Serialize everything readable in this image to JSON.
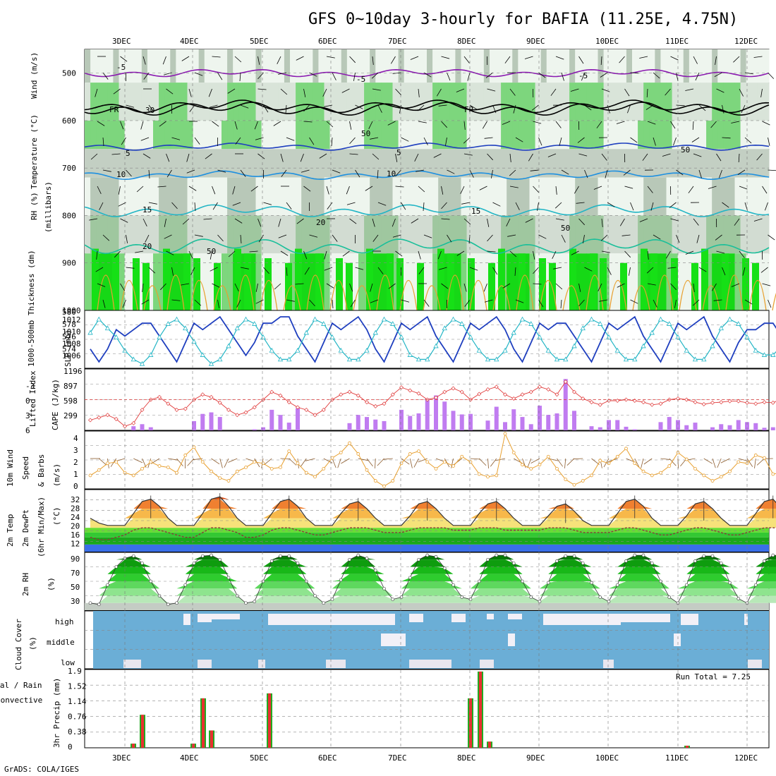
{
  "title": "GFS 0~10day 3-hourly for BAFIA (11.25E, 4.75N)",
  "credit": "GrADS: COLA/IGES",
  "dates": [
    "3DEC",
    "4DEC",
    "5DEC",
    "6DEC",
    "7DEC",
    "8DEC",
    "9DEC",
    "10DEC",
    "11DEC",
    "12DEC"
  ],
  "colors": {
    "sst_line": "#1f3fbf",
    "thickness_line": "#22b5c5",
    "lifted_index": "#e03a3a",
    "cape_bar": "#c07cf0",
    "wind_speed": "#e8a030",
    "rh_green": "#16c116",
    "cloud_blue": "#6baed6",
    "precip_total": "#22aa22",
    "precip_conv": "#e83030"
  },
  "panels": {
    "upper": {
      "ylabel_rh": "RH (%)",
      "ylabel_temp": "Temperature (°C)",
      "ylabel_wind": "Wind (m/s)",
      "ylabel_units": "(millibars)",
      "yticks": [
        "500",
        "600",
        "700",
        "800",
        "900",
        "1000"
      ],
      "contour_labels": [
        "-5",
        "-5",
        "-5",
        "FR",
        "FR",
        "5",
        "5",
        "10",
        "10",
        "15",
        "15",
        "20",
        "20",
        "30",
        "50",
        "50",
        "50",
        "50"
      ]
    },
    "slp": {
      "ylabel_left": "1000-500mb Thickness (dm)",
      "ylabel_right": "SLP (mb)",
      "yticks_left": [
        "580",
        "578",
        "576",
        "574"
      ],
      "yticks_right": [
        "1012",
        "1010",
        "1008",
        "1006"
      ]
    },
    "cape": {
      "ylabel_left": "Lifted Index",
      "ylabel_right": "CAPE (J/kg)",
      "yticks_left": [
        "-3",
        "0",
        "3",
        "6"
      ],
      "yticks_right": [
        "1196",
        "897",
        "598",
        "299"
      ]
    },
    "wind10": {
      "ylabel1": "10m Wind",
      "ylabel2": "Speed",
      "ylabel3": "& Barbs",
      "ylabel4": "(m/s)",
      "yticks": [
        "4",
        "3",
        "2",
        "1",
        "0"
      ]
    },
    "temp2m": {
      "ylabel1": "2m Temp",
      "ylabel2": "2m DewPt",
      "ylabel3": "(6hr Min/Max)",
      "ylabel4": "(°C)",
      "yticks": [
        "32",
        "28",
        "24",
        "20",
        "16",
        "12"
      ]
    },
    "rh2m": {
      "ylabel1": "2m RH",
      "ylabel2": "(%)",
      "yticks": [
        "90",
        "70",
        "50",
        "30"
      ]
    },
    "cloud": {
      "ylabel1": "Cloud Cover",
      "ylabel2": "(%)",
      "levels": [
        "high",
        "middle",
        "low"
      ]
    },
    "precip": {
      "ylabel1": "Total / Rain",
      "ylabel2": "Convective",
      "ylabel3": "3hr Precip (mm)",
      "yticks": [
        "1.9",
        "1.52",
        "1.14",
        "0.76",
        "0.38",
        "0"
      ],
      "run_total": "Run Total = 7.25"
    }
  },
  "chart_data": [
    {
      "type": "line",
      "name": "slp_thickness",
      "x_start": "2DEC 12Z",
      "x_step_hours": 3,
      "series": [
        {
          "name": "SLP (mb)",
          "ylim": [
            1005,
            1014
          ],
          "values": [
            1008,
            1006,
            1008,
            1011,
            1010,
            1011,
            1012,
            1012,
            1010,
            1008,
            1006,
            1009,
            1012,
            1011,
            1012,
            1013,
            1011,
            1009,
            1007,
            1009,
            1012,
            1012,
            1013,
            1013,
            1010,
            1008,
            1006,
            1009,
            1012,
            1011,
            1012,
            1013,
            1011,
            1008,
            1006,
            1009,
            1012,
            1011,
            1012,
            1013,
            1010,
            1008,
            1006,
            1009,
            1012,
            1011,
            1012,
            1013,
            1011,
            1008,
            1006,
            1009,
            1012,
            1011,
            1012,
            1012,
            1010,
            1008,
            1006,
            1009,
            1012,
            1011,
            1012,
            1013,
            1010,
            1008,
            1006,
            1009,
            1012,
            1011,
            1012,
            1013,
            1010,
            1008,
            1006,
            1009,
            1011,
            1011,
            1012,
            1012,
            1010,
            1007
          ]
        },
        {
          "name": "Thickness (dm)",
          "ylim": [
            573.5,
            580
          ],
          "values": [
            577.5,
            579,
            578,
            577,
            575.5,
            574.5,
            574,
            575,
            577,
            578.5,
            579,
            578,
            576.5,
            575,
            574,
            574.5,
            576,
            578,
            579,
            578.5,
            577,
            575.5,
            574.5,
            574.5,
            575.5,
            577.5,
            579,
            578.5,
            577,
            575.5,
            574.5,
            574.5,
            575.5,
            577.5,
            579,
            578.5,
            577,
            575,
            574.5,
            574.5,
            576,
            578,
            579,
            578.5,
            577,
            575.5,
            574.5,
            574.5,
            575.5,
            577.5,
            579,
            578.5,
            577,
            575.5,
            574.5,
            574.5,
            576,
            578,
            579,
            578.5,
            577,
            575.5,
            574.5,
            574.5,
            576,
            577.5,
            579,
            578.5,
            577,
            575.5,
            574.5,
            574.5,
            576,
            578,
            579,
            578.5,
            577,
            575.5,
            575,
            575,
            576,
            577.5
          ]
        }
      ]
    },
    {
      "type": "bar",
      "name": "cape",
      "x_start": "2DEC 12Z",
      "x_step_hours": 3,
      "ylim": [
        0,
        1196
      ],
      "values": [
        0,
        0,
        0,
        0,
        0,
        80,
        120,
        60,
        0,
        0,
        0,
        0,
        180,
        320,
        350,
        260,
        0,
        0,
        0,
        20,
        60,
        400,
        300,
        150,
        430,
        0,
        0,
        0,
        0,
        0,
        140,
        300,
        260,
        210,
        180,
        0,
        400,
        280,
        330,
        620,
        680,
        560,
        380,
        310,
        320,
        0,
        190,
        460,
        160,
        410,
        260,
        120,
        480,
        300,
        330,
        1000,
        380,
        0,
        80,
        60,
        200,
        200,
        70,
        20,
        0,
        0,
        160,
        260,
        200,
        100,
        150,
        0,
        60,
        120,
        100,
        200,
        160,
        140,
        50,
        60,
        40,
        150,
        240,
        200,
        120
      ]
    },
    {
      "type": "line",
      "name": "lifted_index",
      "ylim": [
        6,
        -6
      ],
      "values": [
        4,
        3.5,
        3,
        3.8,
        5.2,
        4.6,
        2,
        0,
        -0.5,
        0.8,
        2,
        1.8,
        0,
        -1,
        -0.5,
        0.6,
        2,
        3,
        2.5,
        1.5,
        0,
        -1.5,
        -0.8,
        0.5,
        1.5,
        2,
        3,
        2,
        0,
        -1,
        -1.5,
        -0.8,
        0.5,
        1.3,
        0.8,
        -1,
        -2.4,
        -1.8,
        -1.2,
        0,
        -0.4,
        -1.5,
        -2.2,
        -1.5,
        0,
        -1.1,
        -2,
        -2.5,
        -1,
        -0.2,
        -1,
        -1.5,
        -2.5,
        -2,
        -1,
        -3.5,
        -1.5,
        -0.2,
        0.5,
        1,
        0.2,
        0.2,
        0,
        0.2,
        0.5,
        1,
        0.8,
        0,
        -0.2,
        0,
        0.5,
        0.9,
        0.6,
        0.5,
        0.3,
        0.3,
        0.6,
        0.8,
        0.5,
        0.6,
        -0.2,
        -0.8
      ]
    },
    {
      "type": "line",
      "name": "wind_speed_10m",
      "ylim": [
        0,
        4.3
      ],
      "values": [
        1,
        1.4,
        1.9,
        2,
        1.2,
        1,
        1.5,
        2,
        1.7,
        1.6,
        1.2,
        2.5,
        3.1,
        2,
        1.3,
        0.8,
        0.6,
        1.3,
        1.6,
        2,
        1.9,
        1.5,
        1.6,
        2.8,
        1.9,
        1.2,
        0.9,
        1.5,
        2.3,
        2.7,
        3.4,
        2.6,
        1.4,
        0.6,
        0.2,
        0.6,
        1.9,
        2.6,
        2.8,
        2,
        1.5,
        2,
        1.7,
        2.4,
        2,
        1.1,
        0.9,
        1,
        4.1,
        2.7,
        1.8,
        1.5,
        1.8,
        2.4,
        1.5,
        0.7,
        0.3,
        0.6,
        1,
        2.1,
        1.9,
        2.4,
        3,
        1.9,
        1.3,
        1,
        1.2,
        1.7,
        2.7,
        2.2,
        1.5,
        1,
        0.6,
        0.9,
        1.3,
        2,
        1.9,
        2.5,
        2.3,
        1.1,
        1.2,
        1.1
      ]
    },
    {
      "type": "area",
      "name": "temp_2m",
      "ylim": [
        10,
        36
      ],
      "series": [
        {
          "name": "2m Temp",
          "values": [
            24,
            22,
            21,
            21,
            21,
            26,
            31,
            32,
            29,
            24,
            21,
            21,
            21,
            26,
            32,
            33,
            29,
            24,
            21,
            21,
            21,
            26,
            31,
            32,
            29,
            24,
            21,
            21,
            21,
            26,
            30,
            31,
            28,
            24,
            21,
            21,
            21,
            25,
            30,
            31,
            28,
            24,
            21,
            21,
            21,
            26,
            30,
            31,
            28,
            24,
            21,
            21,
            21,
            25,
            29,
            30,
            27,
            23,
            21,
            21,
            21,
            26,
            31,
            32,
            29,
            24,
            21,
            21,
            21,
            25,
            30,
            31,
            28,
            24,
            21,
            21,
            21,
            26,
            31,
            32,
            28,
            23
          ]
        },
        {
          "name": "2m DewPt",
          "values": [
            16,
            15,
            15,
            16,
            17,
            19,
            20,
            20,
            19,
            18,
            17,
            16,
            16,
            18,
            20,
            20,
            19,
            18,
            16,
            16,
            17,
            19,
            20,
            20,
            19,
            18,
            17,
            17,
            18,
            19,
            20,
            20,
            20,
            19,
            18,
            18,
            18,
            19,
            20,
            20,
            20,
            20,
            19,
            19,
            19,
            20,
            20,
            20,
            19,
            19,
            19,
            19,
            19,
            20,
            20,
            20,
            19,
            18,
            18,
            18,
            18,
            19,
            20,
            20,
            19,
            18,
            17,
            17,
            18,
            19,
            20,
            20,
            19,
            18,
            17,
            17,
            18,
            19,
            20,
            20,
            20,
            19
          ]
        }
      ]
    },
    {
      "type": "area",
      "name": "rh_2m",
      "ylim": [
        20,
        100
      ],
      "values": [
        30,
        28,
        55,
        80,
        92,
        95,
        85,
        60,
        40,
        28,
        30,
        55,
        85,
        95,
        96,
        90,
        65,
        40,
        30,
        32,
        60,
        88,
        95,
        95,
        85,
        60,
        40,
        30,
        35,
        62,
        90,
        96,
        92,
        75,
        50,
        35,
        38,
        65,
        90,
        96,
        94,
        78,
        55,
        38,
        35,
        60,
        90,
        96,
        96,
        85,
        60,
        38,
        32,
        58,
        88,
        95,
        95,
        85,
        58,
        38,
        32,
        55,
        88,
        96,
        96,
        85,
        60,
        38,
        30,
        55,
        88,
        95,
        95,
        85,
        58,
        36,
        30,
        55,
        88,
        96,
        96,
        88
      ]
    },
    {
      "type": "bar",
      "name": "precip_3hr",
      "ylim": [
        0,
        1.9
      ],
      "categories": [
        "3DEC",
        "4DEC",
        "5DEC",
        "8DEC",
        "11DEC"
      ],
      "series": [
        {
          "name": "Total",
          "values": [
            0.8,
            1.2,
            1.32,
            1.85,
            0.05
          ]
        },
        {
          "name": "Convective",
          "values": [
            0.8,
            1.2,
            1.32,
            1.85,
            0.05
          ]
        }
      ]
    }
  ]
}
